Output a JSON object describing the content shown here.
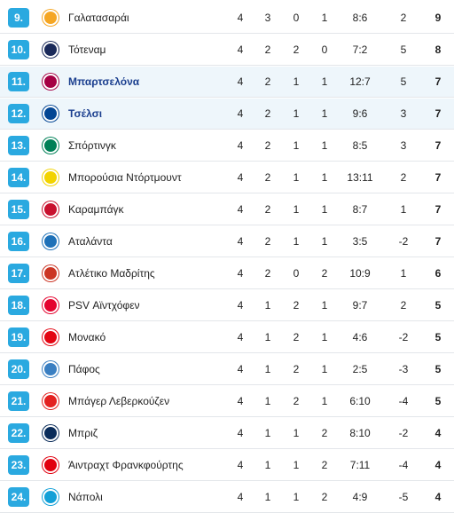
{
  "rows": [
    {
      "pos": "9.",
      "team": "Γαλατασαράι",
      "p": "4",
      "w": "3",
      "d": "0",
      "l": "1",
      "goals": "8:6",
      "diff": "2",
      "pts": "9",
      "crest": "galatasaray-crest-icon",
      "color": "#f5a623",
      "hl": false
    },
    {
      "pos": "10.",
      "team": "Τότεναμ",
      "p": "4",
      "w": "2",
      "d": "2",
      "l": "0",
      "goals": "7:2",
      "diff": "5",
      "pts": "8",
      "crest": "tottenham-crest-icon",
      "color": "#1a2a5a",
      "hl": false
    },
    {
      "pos": "11.",
      "team": "Μπαρτσελόνα",
      "p": "4",
      "w": "2",
      "d": "1",
      "l": "1",
      "goals": "12:7",
      "diff": "5",
      "pts": "7",
      "crest": "barcelona-crest-icon",
      "color": "#a50044",
      "hl": true
    },
    {
      "pos": "12.",
      "team": "Τσέλσι",
      "p": "4",
      "w": "2",
      "d": "1",
      "l": "1",
      "goals": "9:6",
      "diff": "3",
      "pts": "7",
      "crest": "chelsea-crest-icon",
      "color": "#034694",
      "hl": true
    },
    {
      "pos": "13.",
      "team": "Σπόρτινγκ",
      "p": "4",
      "w": "2",
      "d": "1",
      "l": "1",
      "goals": "8:5",
      "diff": "3",
      "pts": "7",
      "crest": "sporting-crest-icon",
      "color": "#008057",
      "hl": false
    },
    {
      "pos": "14.",
      "team": "Μπορούσια Ντόρτμουντ",
      "p": "4",
      "w": "2",
      "d": "1",
      "l": "1",
      "goals": "13:11",
      "diff": "2",
      "pts": "7",
      "crest": "dortmund-crest-icon",
      "color": "#f2d300",
      "hl": false
    },
    {
      "pos": "15.",
      "team": "Καραμπάγκ",
      "p": "4",
      "w": "2",
      "d": "1",
      "l": "1",
      "goals": "8:7",
      "diff": "1",
      "pts": "7",
      "crest": "qarabag-crest-icon",
      "color": "#c8102e",
      "hl": false
    },
    {
      "pos": "16.",
      "team": "Αταλάντα",
      "p": "4",
      "w": "2",
      "d": "1",
      "l": "1",
      "goals": "3:5",
      "diff": "-2",
      "pts": "7",
      "crest": "atalanta-crest-icon",
      "color": "#1e71b8",
      "hl": false
    },
    {
      "pos": "17.",
      "team": "Ατλέτικο Μαδρίτης",
      "p": "4",
      "w": "2",
      "d": "0",
      "l": "2",
      "goals": "10:9",
      "diff": "1",
      "pts": "6",
      "crest": "atletico-crest-icon",
      "color": "#cb3524",
      "hl": false
    },
    {
      "pos": "18.",
      "team": "PSV Αϊντχόφεν",
      "p": "4",
      "w": "1",
      "d": "2",
      "l": "1",
      "goals": "9:7",
      "diff": "2",
      "pts": "5",
      "crest": "psv-crest-icon",
      "color": "#e4032e",
      "hl": false
    },
    {
      "pos": "19.",
      "team": "Μονακό",
      "p": "4",
      "w": "1",
      "d": "2",
      "l": "1",
      "goals": "4:6",
      "diff": "-2",
      "pts": "5",
      "crest": "monaco-crest-icon",
      "color": "#e30613",
      "hl": false
    },
    {
      "pos": "20.",
      "team": "Πάφος",
      "p": "4",
      "w": "1",
      "d": "2",
      "l": "1",
      "goals": "2:5",
      "diff": "-3",
      "pts": "5",
      "crest": "pafos-crest-icon",
      "color": "#3a7fc2",
      "hl": false
    },
    {
      "pos": "21.",
      "team": "Μπάγερ Λεβερκούζεν",
      "p": "4",
      "w": "1",
      "d": "2",
      "l": "1",
      "goals": "6:10",
      "diff": "-4",
      "pts": "5",
      "crest": "leverkusen-crest-icon",
      "color": "#e32221",
      "hl": false
    },
    {
      "pos": "22.",
      "team": "Μπριζ",
      "p": "4",
      "w": "1",
      "d": "1",
      "l": "2",
      "goals": "8:10",
      "diff": "-2",
      "pts": "4",
      "crest": "brugge-crest-icon",
      "color": "#0a2c5a",
      "hl": false
    },
    {
      "pos": "23.",
      "team": "Άιντραχτ Φρανκφούρτης",
      "p": "4",
      "w": "1",
      "d": "1",
      "l": "2",
      "goals": "7:11",
      "diff": "-4",
      "pts": "4",
      "crest": "frankfurt-crest-icon",
      "color": "#e1000f",
      "hl": false
    },
    {
      "pos": "24.",
      "team": "Νάπολι",
      "p": "4",
      "w": "1",
      "d": "1",
      "l": "2",
      "goals": "4:9",
      "diff": "-5",
      "pts": "4",
      "crest": "napoli-crest-icon",
      "color": "#12a0d7",
      "hl": false
    }
  ]
}
